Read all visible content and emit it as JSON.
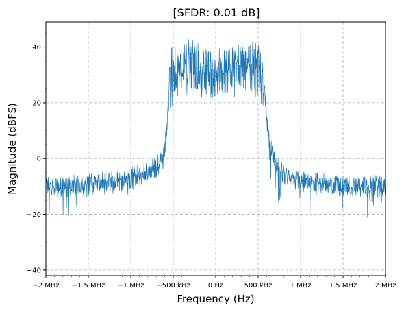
{
  "chart_data": {
    "type": "line",
    "title": "[SFDR: 0.01 dB]",
    "xlabel": "Frequency (Hz)",
    "ylabel": "Magnitude (dBFS)",
    "xlim": [
      -2000000,
      2000000
    ],
    "ylim": [
      -42,
      49
    ],
    "grid": true,
    "x_ticks": [
      {
        "value": -2000000,
        "label": "−2 MHz"
      },
      {
        "value": -1500000,
        "label": "−1.5 MHz"
      },
      {
        "value": -1000000,
        "label": "−1 MHz"
      },
      {
        "value": -500000,
        "label": "−500 kHz"
      },
      {
        "value": 0,
        "label": "0 Hz"
      },
      {
        "value": 500000,
        "label": "500 kHz"
      },
      {
        "value": 1000000,
        "label": "1 MHz"
      },
      {
        "value": 1500000,
        "label": "1.5 MHz"
      },
      {
        "value": 2000000,
        "label": "2 MHz"
      }
    ],
    "y_ticks": [
      {
        "value": -40,
        "label": "−40"
      },
      {
        "value": -20,
        "label": "−20"
      },
      {
        "value": 0,
        "label": "0"
      },
      {
        "value": 20,
        "label": "20"
      },
      {
        "value": 40,
        "label": "40"
      }
    ],
    "series": [
      {
        "color": "#1f77b4",
        "x": [
          -2000000,
          -1800000,
          -1600000,
          -1400000,
          -1200000,
          -1000000,
          -800000,
          -700000,
          -620000,
          -580000,
          -550000,
          -520000,
          -500000,
          -400000,
          -300000,
          -200000,
          -100000,
          0,
          100000,
          200000,
          300000,
          400000,
          500000,
          540000,
          580000,
          620000,
          700000,
          800000,
          1000000,
          1200000,
          1400000,
          1600000,
          1800000,
          2000000
        ],
        "y": [
          -10,
          -10,
          -9.5,
          -9,
          -8.5,
          -7,
          -5,
          -3,
          0,
          10,
          25,
          30,
          32,
          33,
          33,
          32,
          31,
          31,
          31,
          32,
          33,
          33,
          32,
          29,
          22,
          8,
          -2,
          -6,
          -8,
          -9,
          -10,
          -10,
          -10,
          -10
        ]
      }
    ]
  }
}
